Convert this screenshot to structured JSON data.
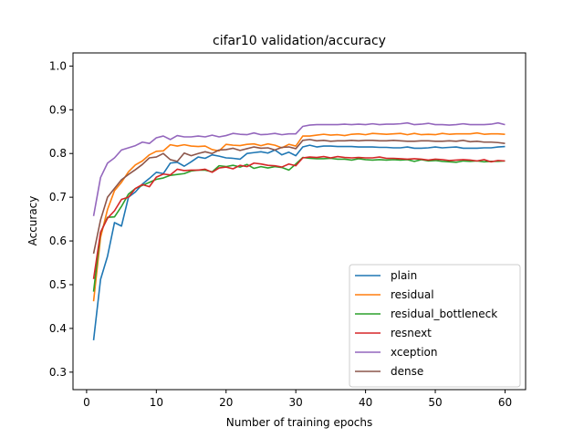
{
  "chart_data": {
    "type": "line",
    "title": "cifar10 validation/accuracy",
    "xlabel": "Number of training epochs",
    "ylabel": "Accuracy",
    "xlim": [
      -1.95,
      62.95
    ],
    "ylim": [
      0.26,
      1.03
    ],
    "xticks": [
      0,
      10,
      20,
      30,
      40,
      50,
      60
    ],
    "yticks": [
      0.3,
      0.4,
      0.5,
      0.6,
      0.7,
      0.8,
      0.9,
      1.0
    ],
    "xtick_labels": [
      "0",
      "10",
      "20",
      "30",
      "40",
      "50",
      "60"
    ],
    "ytick_labels": [
      "0.3",
      "0.4",
      "0.5",
      "0.6",
      "0.7",
      "0.8",
      "0.9",
      "1.0"
    ],
    "grid": false,
    "legend_position": "lower-right",
    "x": [
      1,
      2,
      3,
      4,
      5,
      6,
      7,
      8,
      9,
      10,
      11,
      12,
      13,
      14,
      15,
      16,
      17,
      18,
      19,
      20,
      21,
      22,
      23,
      24,
      25,
      26,
      27,
      28,
      29,
      30,
      31,
      32,
      33,
      34,
      35,
      36,
      37,
      38,
      39,
      40,
      41,
      42,
      43,
      44,
      45,
      46,
      47,
      48,
      49,
      50,
      51,
      52,
      53,
      54,
      55,
      56,
      57,
      58,
      59,
      60
    ],
    "series": [
      {
        "name": "plain",
        "color": "#1f77b4",
        "values": [
          0.373,
          0.512,
          0.565,
          0.642,
          0.634,
          0.7,
          0.712,
          0.73,
          0.743,
          0.757,
          0.754,
          0.778,
          0.78,
          0.771,
          0.781,
          0.792,
          0.789,
          0.797,
          0.794,
          0.79,
          0.789,
          0.787,
          0.8,
          0.802,
          0.804,
          0.801,
          0.808,
          0.797,
          0.803,
          0.795,
          0.815,
          0.819,
          0.815,
          0.817,
          0.817,
          0.816,
          0.816,
          0.816,
          0.815,
          0.815,
          0.815,
          0.814,
          0.814,
          0.813,
          0.813,
          0.815,
          0.812,
          0.812,
          0.813,
          0.815,
          0.813,
          0.814,
          0.815,
          0.812,
          0.812,
          0.812,
          0.813,
          0.813,
          0.815,
          0.816
        ]
      },
      {
        "name": "residual",
        "color": "#ff7f0e",
        "values": [
          0.462,
          0.608,
          0.672,
          0.715,
          0.734,
          0.758,
          0.774,
          0.783,
          0.797,
          0.805,
          0.806,
          0.82,
          0.817,
          0.82,
          0.817,
          0.816,
          0.817,
          0.809,
          0.806,
          0.821,
          0.819,
          0.818,
          0.821,
          0.822,
          0.818,
          0.822,
          0.819,
          0.813,
          0.821,
          0.817,
          0.84,
          0.84,
          0.842,
          0.844,
          0.842,
          0.843,
          0.841,
          0.844,
          0.845,
          0.843,
          0.846,
          0.845,
          0.844,
          0.845,
          0.846,
          0.843,
          0.846,
          0.843,
          0.844,
          0.843,
          0.846,
          0.844,
          0.845,
          0.845,
          0.845,
          0.847,
          0.844,
          0.845,
          0.845,
          0.844
        ]
      },
      {
        "name": "residual_bottleneck",
        "color": "#2ca02c",
        "values": [
          0.484,
          0.619,
          0.654,
          0.655,
          0.679,
          0.707,
          0.72,
          0.727,
          0.734,
          0.741,
          0.744,
          0.75,
          0.752,
          0.754,
          0.76,
          0.762,
          0.762,
          0.758,
          0.772,
          0.77,
          0.773,
          0.769,
          0.775,
          0.766,
          0.77,
          0.767,
          0.77,
          0.768,
          0.762,
          0.776,
          0.791,
          0.789,
          0.788,
          0.788,
          0.789,
          0.787,
          0.787,
          0.785,
          0.788,
          0.786,
          0.785,
          0.786,
          0.785,
          0.786,
          0.785,
          0.786,
          0.782,
          0.786,
          0.783,
          0.784,
          0.782,
          0.781,
          0.78,
          0.783,
          0.782,
          0.783,
          0.781,
          0.782,
          0.782,
          0.783
        ]
      },
      {
        "name": "resnext",
        "color": "#d62728",
        "values": [
          0.513,
          0.62,
          0.652,
          0.669,
          0.695,
          0.7,
          0.72,
          0.729,
          0.724,
          0.746,
          0.753,
          0.751,
          0.764,
          0.761,
          0.762,
          0.762,
          0.764,
          0.757,
          0.767,
          0.769,
          0.765,
          0.773,
          0.77,
          0.778,
          0.776,
          0.773,
          0.772,
          0.769,
          0.776,
          0.772,
          0.79,
          0.792,
          0.791,
          0.793,
          0.79,
          0.793,
          0.791,
          0.79,
          0.791,
          0.79,
          0.79,
          0.792,
          0.789,
          0.789,
          0.788,
          0.787,
          0.788,
          0.787,
          0.785,
          0.787,
          0.786,
          0.784,
          0.785,
          0.786,
          0.785,
          0.783,
          0.786,
          0.781,
          0.784,
          0.783
        ]
      },
      {
        "name": "xception",
        "color": "#9467bd",
        "values": [
          0.657,
          0.745,
          0.778,
          0.79,
          0.808,
          0.813,
          0.818,
          0.826,
          0.823,
          0.836,
          0.84,
          0.832,
          0.841,
          0.838,
          0.838,
          0.84,
          0.838,
          0.842,
          0.838,
          0.841,
          0.846,
          0.844,
          0.843,
          0.847,
          0.843,
          0.844,
          0.846,
          0.843,
          0.845,
          0.845,
          0.862,
          0.865,
          0.866,
          0.866,
          0.866,
          0.866,
          0.867,
          0.866,
          0.867,
          0.866,
          0.868,
          0.866,
          0.867,
          0.867,
          0.868,
          0.87,
          0.866,
          0.867,
          0.869,
          0.866,
          0.866,
          0.865,
          0.866,
          0.868,
          0.866,
          0.866,
          0.866,
          0.867,
          0.87,
          0.866
        ]
      },
      {
        "name": "dense",
        "color": "#8c564b",
        "values": [
          0.571,
          0.648,
          0.7,
          0.72,
          0.74,
          0.752,
          0.763,
          0.775,
          0.79,
          0.792,
          0.8,
          0.786,
          0.782,
          0.801,
          0.795,
          0.8,
          0.804,
          0.8,
          0.808,
          0.809,
          0.812,
          0.807,
          0.811,
          0.815,
          0.812,
          0.813,
          0.808,
          0.814,
          0.815,
          0.811,
          0.83,
          0.832,
          0.829,
          0.83,
          0.828,
          0.829,
          0.829,
          0.83,
          0.829,
          0.83,
          0.83,
          0.829,
          0.829,
          0.83,
          0.829,
          0.828,
          0.828,
          0.829,
          0.829,
          0.828,
          0.828,
          0.829,
          0.828,
          0.83,
          0.827,
          0.828,
          0.826,
          0.826,
          0.825,
          0.823
        ]
      }
    ]
  }
}
